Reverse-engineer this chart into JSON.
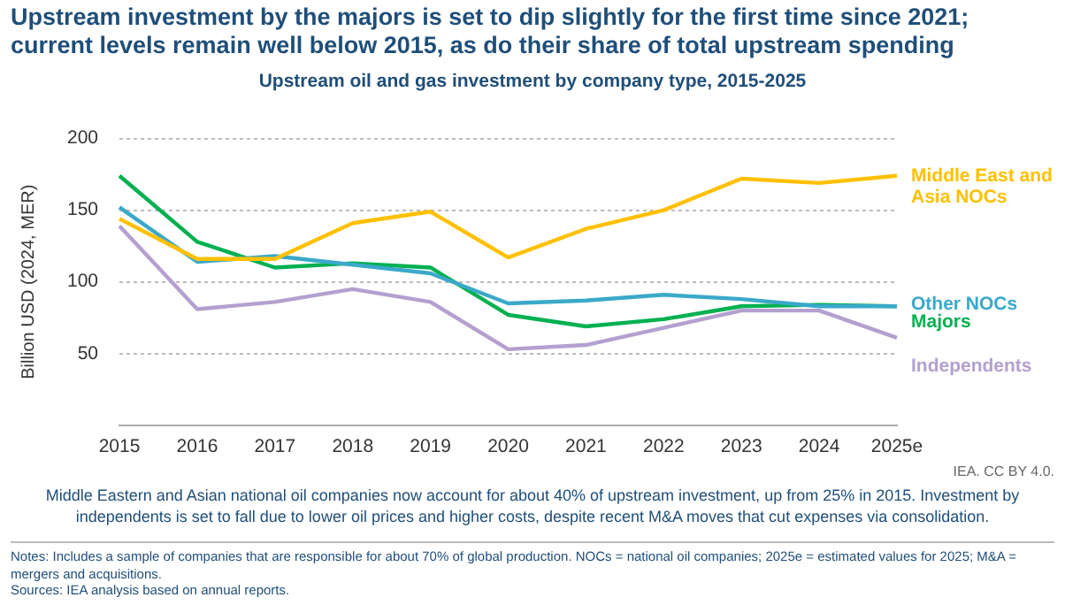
{
  "chart_data": {
    "type": "line",
    "title": "Upstream investment by the majors is set to dip slightly for the first time since 2021; current levels remain well below 2015, as do their share of total upstream spending",
    "subtitle": "Upstream oil and gas investment by company type, 2015-2025",
    "ylabel": "Billion USD (2024, MER)",
    "categories": [
      "2015",
      "2016",
      "2017",
      "2018",
      "2019",
      "2020",
      "2021",
      "2022",
      "2023",
      "2024",
      "2025e"
    ],
    "series": [
      {
        "name": "Middle East and Asia NOCs",
        "color": "#ffc000",
        "values": [
          144,
          116,
          116,
          141,
          149,
          117,
          137,
          150,
          172,
          169,
          174
        ]
      },
      {
        "name": "Other NOCs",
        "color": "#3aa9c9",
        "values": [
          152,
          114,
          118,
          112,
          106,
          85,
          87,
          91,
          88,
          83,
          83
        ]
      },
      {
        "name": "Majors",
        "color": "#00b050",
        "values": [
          174,
          128,
          110,
          113,
          110,
          77,
          69,
          74,
          83,
          84,
          83
        ]
      },
      {
        "name": "Independents",
        "color": "#b4a0cf",
        "values": [
          139,
          81,
          86,
          95,
          86,
          53,
          56,
          68,
          80,
          80,
          61
        ]
      }
    ],
    "ylim": [
      0,
      200
    ],
    "yticks": [
      50,
      100,
      150,
      200
    ],
    "grid": "y",
    "marker": "none",
    "line_style": "solid",
    "annotations": [
      "IEA. CC BY 4.0.",
      "Middle Eastern and Asian national oil companies now account for about 40% of upstream investment, up from 25% in 2015. Investment by independents is set to fall due to lower oil prices and higher costs, despite recent M&A moves that cut expenses via consolidation.",
      "Notes: Includes a sample of companies that are responsible for about 70% of global production. NOCs = national oil companies; 2025e = estimated values for 2025; M&A = mergers and acquisitions.",
      "Sources: IEA analysis based on annual reports."
    ]
  }
}
